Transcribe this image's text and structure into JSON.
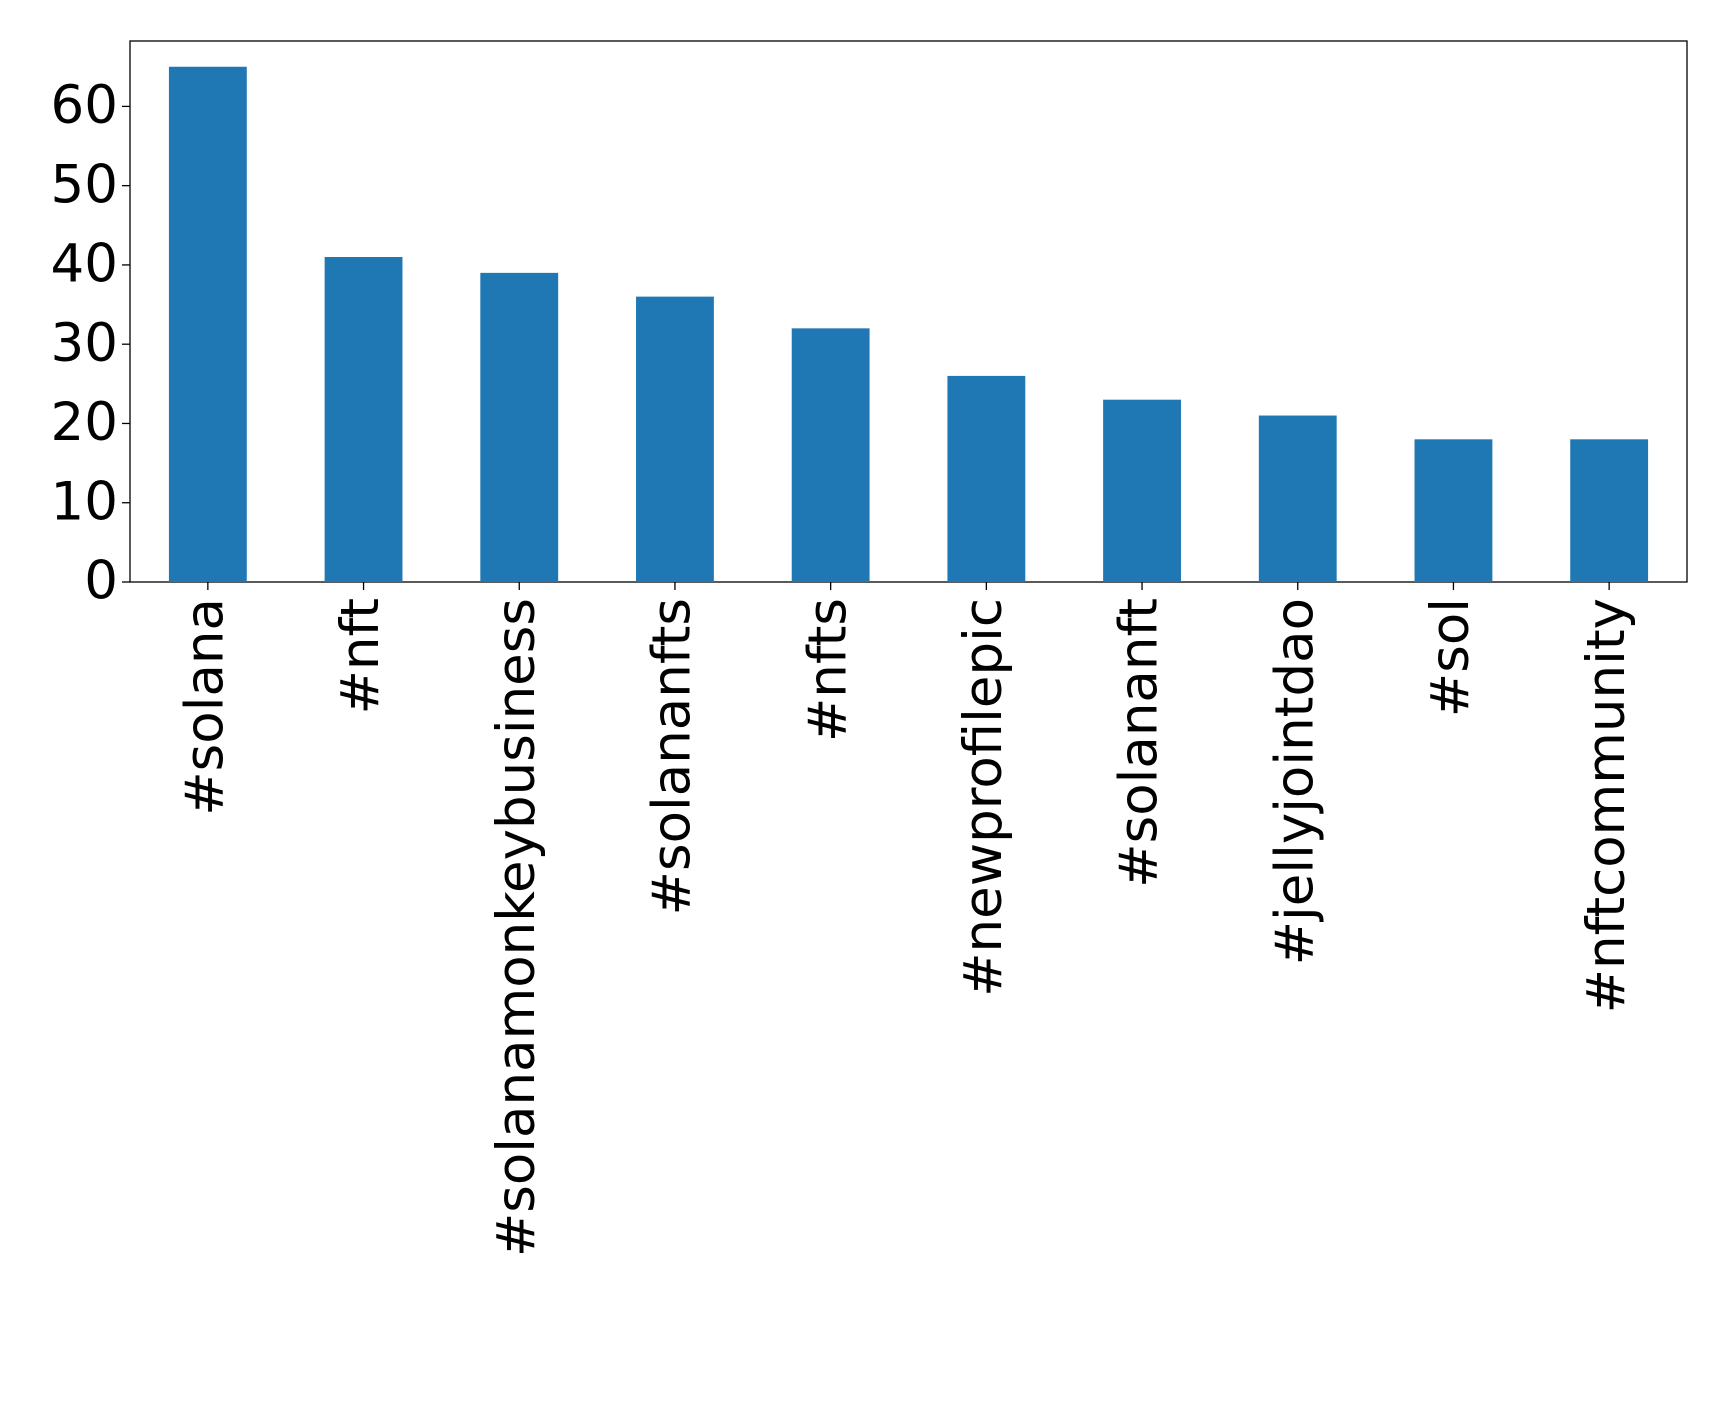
{
  "chart_data": {
    "type": "bar",
    "categories": [
      "#solana",
      "#nft",
      "#solanamonkeybusiness",
      "#solananfts",
      "#nfts",
      "#newprofilepic",
      "#solananft",
      "#jellyjointdao",
      "#sol",
      "#nftcommunity"
    ],
    "values": [
      65,
      41,
      39,
      36,
      32,
      26,
      23,
      21,
      18,
      18
    ],
    "color": "#1f77b4",
    "ylim": [
      0,
      68.25
    ],
    "yticks": [
      0,
      10,
      20,
      30,
      40,
      50,
      60
    ],
    "grid": false
  }
}
